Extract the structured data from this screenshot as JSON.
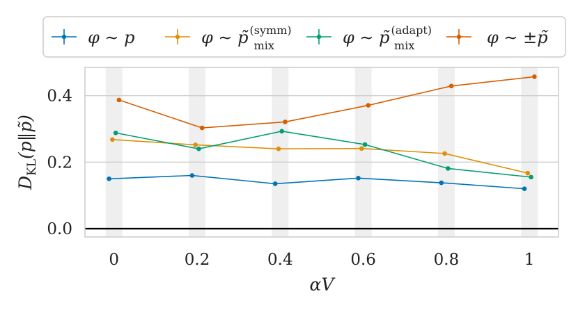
{
  "chart_data": {
    "type": "line",
    "xlabel": "αV",
    "ylabel": "D_KL(p‖p̃)",
    "x": [
      0,
      0.2,
      0.4,
      0.6,
      0.8,
      1
    ],
    "x_tick_labels": [
      "0",
      "0.2",
      "0.4",
      "0.6",
      "0.8",
      "1"
    ],
    "xlim": [
      -0.07,
      1.07
    ],
    "ylim": [
      -0.025,
      0.485
    ],
    "y_ticks": [
      0.0,
      0.2,
      0.4
    ],
    "y_tick_labels": [
      "0.0",
      "0.2",
      "0.4"
    ],
    "grid": "horizontal",
    "reference_line_y": 0,
    "legend": {
      "placement": "top",
      "columns": 4
    },
    "series": [
      {
        "name": "φ ∼ p",
        "color": "#0173b2",
        "offset": -0.012,
        "values": [
          0.15,
          0.16,
          0.135,
          0.152,
          0.138,
          0.12
        ]
      },
      {
        "name": "φ ∼ p̃mix(symm)",
        "color": "#de8f05",
        "offset": -0.004,
        "values": [
          0.268,
          0.252,
          0.24,
          0.241,
          0.226,
          0.167
        ]
      },
      {
        "name": "φ ∼ p̃mix(adapt)",
        "color": "#029e73",
        "offset": 0.004,
        "values": [
          0.288,
          0.24,
          0.293,
          0.253,
          0.181,
          0.155
        ]
      },
      {
        "name": "φ ∼ ±p̃",
        "color": "#d55e00",
        "offset": 0.012,
        "values": [
          0.387,
          0.303,
          0.321,
          0.371,
          0.429,
          0.457
        ]
      }
    ]
  }
}
